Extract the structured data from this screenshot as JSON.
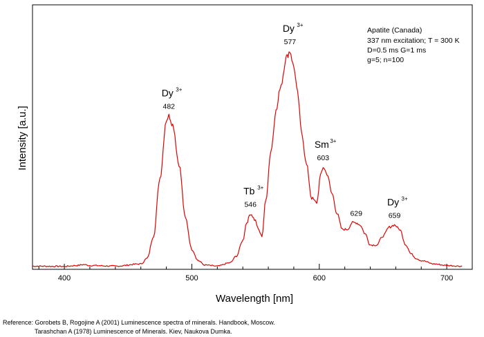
{
  "chart_data": {
    "type": "line",
    "title": "",
    "xlabel": "Wavelength [nm]",
    "ylabel": "Intensity [a.u.]",
    "xlim": [
      375,
      720
    ],
    "ylim": [
      0,
      100
    ],
    "x_ticks": [
      400,
      500,
      600,
      700
    ],
    "y_ticks_labeled": false,
    "grid": false,
    "line_color": "#e00000",
    "series": [
      {
        "x": [
          375,
          400,
          410,
          415,
          420,
          440,
          460,
          465,
          470,
          475,
          480,
          482,
          485,
          490,
          495,
          500,
          505,
          510,
          520,
          530,
          535,
          540,
          543,
          546,
          550,
          552,
          555,
          558,
          562,
          566,
          570,
          574,
          577,
          580,
          583,
          586,
          590,
          594,
          598,
          601,
          603,
          606,
          610,
          614,
          618,
          622,
          626,
          629,
          632,
          636,
          640,
          645,
          650,
          655,
          659,
          663,
          668,
          672,
          676,
          680,
          690,
          700,
          712
        ],
        "y": [
          0.5,
          0.4,
          0.8,
          1.2,
          0.8,
          0.5,
          1.5,
          4,
          14,
          40,
          66,
          68,
          64,
          46,
          22,
          8,
          3,
          1,
          0.5,
          2,
          5,
          12,
          20,
          24,
          21,
          17,
          14,
          30,
          52,
          70,
          82,
          94,
          97,
          90,
          78,
          61,
          46,
          31,
          29,
          41,
          45,
          42,
          33,
          24,
          17,
          17,
          20,
          20,
          19,
          15,
          10,
          10,
          14,
          18,
          19,
          17,
          10,
          6,
          4,
          3,
          1.5,
          0.8,
          0.5
        ]
      }
    ],
    "peak_annotations": [
      {
        "ion": "Dy",
        "superscript": "3+",
        "wavelength": "482",
        "x": 482,
        "y": 68
      },
      {
        "ion": "Tb",
        "superscript": "3+",
        "wavelength": "546",
        "x": 546,
        "y": 24
      },
      {
        "ion": "Dy",
        "superscript": "3+",
        "wavelength": "577",
        "x": 577,
        "y": 97
      },
      {
        "ion": "Sm",
        "superscript": "3+",
        "wavelength": "603",
        "x": 603,
        "y": 45
      },
      {
        "ion": "",
        "superscript": "",
        "wavelength": "629",
        "x": 629,
        "y": 20
      },
      {
        "ion": "Dy",
        "superscript": "3+",
        "wavelength": "659",
        "x": 659,
        "y": 19
      }
    ],
    "info_box": [
      "Apatite (Canada)",
      "337 nm excitation; T = 300 K",
      "D=0.5 ms G=1 ms",
      "g=5; n=100"
    ]
  },
  "reference": {
    "line1": "Reference: Gorobets B, Rogojine A (2001) Luminescence spectra of minerals. Handbook, Moscow.",
    "line2": "Tarashchan A (1978) Luminescence of Minerals. Kiev, Naukova Dumka."
  }
}
